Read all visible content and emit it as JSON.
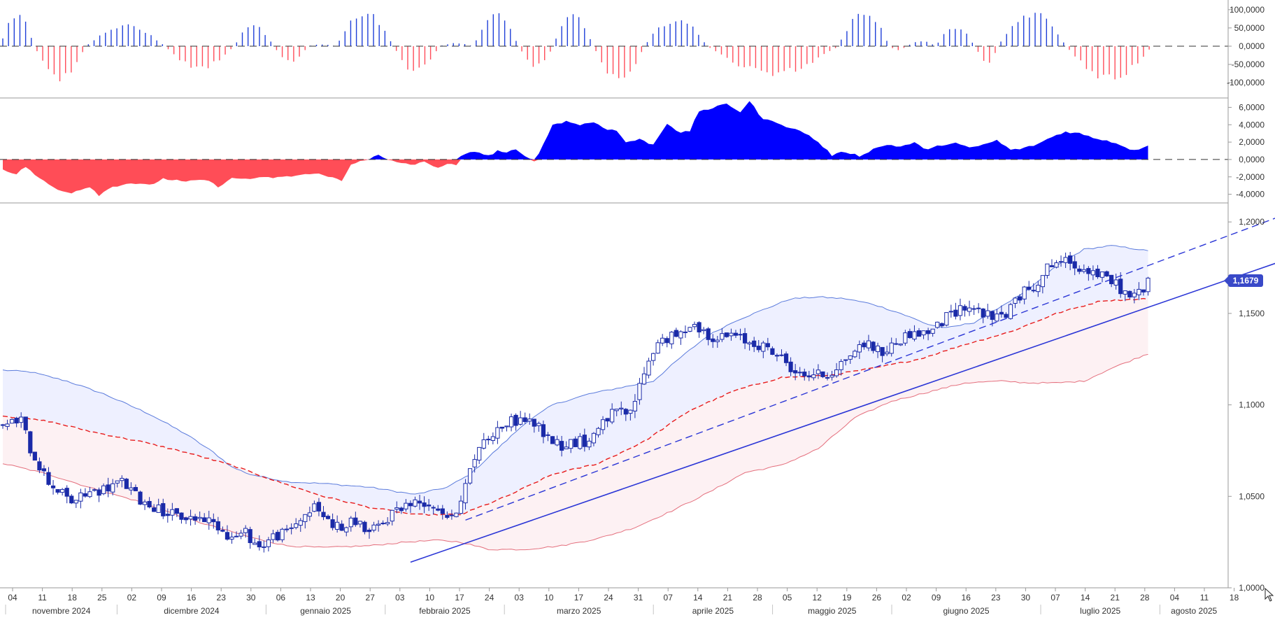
{
  "colors": {
    "up_hist": "#1f3fd8",
    "down_hist": "#ff4d5a",
    "macd_pos": "#0000ff",
    "macd_neg": "#ff4d57",
    "candle": "#1a2aa8",
    "upper_band": "#5b7bdc",
    "upper_fill": "#eef0ff",
    "lower_band": "#e46f7d",
    "lower_fill": "#fdf1f3",
    "midline": "#e81c1c",
    "trend": "#2b36d6",
    "price_tag_bg": "#3949c8",
    "axis_line": "#9a9a9a",
    "grid_zero": "#333333"
  },
  "chart_data": {
    "type": "candlestick",
    "instrument_note": "",
    "price_last_label": "1,1679",
    "price_last": 1.1679,
    "panels": {
      "histogram": {
        "type": "bar",
        "ylim": [
          -115000,
          115000
        ],
        "ticks": [
          "100,0000",
          "50,0000",
          "0,0000",
          "-50,0000",
          "-100,0000"
        ],
        "tick_values": [
          100000,
          50000,
          0,
          -50000,
          -100000
        ]
      },
      "oscillator": {
        "type": "area",
        "ylim": [
          -5000,
          7000
        ],
        "ticks": [
          "6,0000",
          "4,0000",
          "2,0000",
          "0,0000",
          "-2,0000",
          "-4,0000"
        ],
        "tick_values": [
          6000,
          4000,
          2000,
          0,
          -2000,
          -4000
        ]
      },
      "price": {
        "type": "candlestick",
        "ylim": [
          1.0,
          1.21
        ],
        "ticks": [
          "1,2000",
          "1,1500",
          "1,1000",
          "1,0500",
          "1,0000"
        ],
        "tick_values": [
          1.2,
          1.15,
          1.1,
          1.05,
          1.0
        ]
      }
    },
    "x_axis": {
      "day_ticks": [
        "04",
        "11",
        "18",
        "25",
        "02",
        "09",
        "16",
        "23",
        "30",
        "06",
        "13",
        "20",
        "27",
        "03",
        "10",
        "17",
        "24",
        "03",
        "10",
        "17",
        "24",
        "31",
        "07",
        "14",
        "21",
        "28",
        "05",
        "12",
        "19",
        "26",
        "02",
        "09",
        "16",
        "23",
        "30",
        "07",
        "14",
        "21",
        "28",
        "04",
        "11",
        "18"
      ],
      "months": [
        "novembre 2024",
        "dicembre 2024",
        "gennaio 2025",
        "febbraio 2025",
        "marzo 2025",
        "aprile 2025",
        "maggio 2025",
        "giugno 2025",
        "luglio 2025",
        "agosto 2025"
      ]
    },
    "close_anchors": [
      [
        0,
        1.088
      ],
      [
        4,
        1.092
      ],
      [
        6,
        1.076
      ],
      [
        10,
        1.058
      ],
      [
        15,
        1.047
      ],
      [
        19,
        1.052
      ],
      [
        22,
        1.054
      ],
      [
        26,
        1.058
      ],
      [
        30,
        1.048
      ],
      [
        34,
        1.043
      ],
      [
        38,
        1.039
      ],
      [
        42,
        1.038
      ],
      [
        44,
        1.038
      ],
      [
        47,
        1.034
      ],
      [
        50,
        1.027
      ],
      [
        53,
        1.03
      ],
      [
        56,
        1.022
      ],
      [
        59,
        1.028
      ],
      [
        62,
        1.03
      ],
      [
        65,
        1.038
      ],
      [
        68,
        1.044
      ],
      [
        71,
        1.037
      ],
      [
        74,
        1.032
      ],
      [
        77,
        1.037
      ],
      [
        80,
        1.03
      ],
      [
        83,
        1.035
      ],
      [
        86,
        1.044
      ],
      [
        89,
        1.046
      ],
      [
        92,
        1.047
      ],
      [
        95,
        1.044
      ],
      [
        98,
        1.037
      ],
      [
        101,
        1.056
      ],
      [
        104,
        1.078
      ],
      [
        107,
        1.085
      ],
      [
        110,
        1.09
      ],
      [
        113,
        1.092
      ],
      [
        116,
        1.09
      ],
      [
        119,
        1.082
      ],
      [
        122,
        1.078
      ],
      [
        125,
        1.08
      ],
      [
        128,
        1.08
      ],
      [
        131,
        1.092
      ],
      [
        134,
        1.096
      ],
      [
        137,
        1.095
      ],
      [
        140,
        1.118
      ],
      [
        143,
        1.135
      ],
      [
        146,
        1.137
      ],
      [
        148,
        1.138
      ],
      [
        150,
        1.145
      ],
      [
        153,
        1.14
      ],
      [
        156,
        1.136
      ],
      [
        159,
        1.138
      ],
      [
        162,
        1.135
      ],
      [
        165,
        1.133
      ],
      [
        168,
        1.129
      ],
      [
        171,
        1.123
      ],
      [
        174,
        1.116
      ],
      [
        177,
        1.117
      ],
      [
        180,
        1.116
      ],
      [
        183,
        1.123
      ],
      [
        186,
        1.13
      ],
      [
        189,
        1.134
      ],
      [
        192,
        1.128
      ],
      [
        195,
        1.134
      ],
      [
        198,
        1.139
      ],
      [
        201,
        1.139
      ],
      [
        204,
        1.143
      ],
      [
        207,
        1.15
      ],
      [
        210,
        1.154
      ],
      [
        213,
        1.152
      ],
      [
        216,
        1.147
      ],
      [
        219,
        1.15
      ],
      [
        222,
        1.16
      ],
      [
        225,
        1.165
      ],
      [
        228,
        1.175
      ],
      [
        231,
        1.179
      ],
      [
        234,
        1.176
      ],
      [
        237,
        1.174
      ],
      [
        240,
        1.17
      ],
      [
        243,
        1.166
      ],
      [
        246,
        1.159
      ],
      [
        248,
        1.161
      ],
      [
        250,
        1.168
      ]
    ],
    "upper_band_anchors": [
      [
        0,
        1.119
      ],
      [
        6,
        1.118
      ],
      [
        14,
        1.113
      ],
      [
        22,
        1.106
      ],
      [
        32,
        1.095
      ],
      [
        40,
        1.084
      ],
      [
        46,
        1.074
      ],
      [
        50,
        1.066
      ],
      [
        54,
        1.062
      ],
      [
        62,
        1.058
      ],
      [
        70,
        1.057
      ],
      [
        80,
        1.055
      ],
      [
        90,
        1.051
      ],
      [
        97,
        1.055
      ],
      [
        102,
        1.062
      ],
      [
        108,
        1.076
      ],
      [
        114,
        1.09
      ],
      [
        120,
        1.1
      ],
      [
        128,
        1.106
      ],
      [
        136,
        1.11
      ],
      [
        142,
        1.113
      ],
      [
        148,
        1.126
      ],
      [
        154,
        1.138
      ],
      [
        160,
        1.146
      ],
      [
        166,
        1.152
      ],
      [
        172,
        1.158
      ],
      [
        178,
        1.159
      ],
      [
        184,
        1.158
      ],
      [
        190,
        1.155
      ],
      [
        196,
        1.15
      ],
      [
        202,
        1.144
      ],
      [
        206,
        1.142
      ],
      [
        212,
        1.145
      ],
      [
        218,
        1.154
      ],
      [
        224,
        1.163
      ],
      [
        230,
        1.176
      ],
      [
        236,
        1.185
      ],
      [
        242,
        1.187
      ],
      [
        248,
        1.185
      ],
      [
        250,
        1.184
      ]
    ],
    "midline_anchors": [
      [
        0,
        1.094
      ],
      [
        10,
        1.091
      ],
      [
        20,
        1.085
      ],
      [
        30,
        1.08
      ],
      [
        40,
        1.074
      ],
      [
        50,
        1.067
      ],
      [
        60,
        1.058
      ],
      [
        70,
        1.05
      ],
      [
        80,
        1.044
      ],
      [
        90,
        1.04
      ],
      [
        100,
        1.04
      ],
      [
        110,
        1.05
      ],
      [
        120,
        1.062
      ],
      [
        130,
        1.068
      ],
      [
        140,
        1.08
      ],
      [
        150,
        1.097
      ],
      [
        160,
        1.108
      ],
      [
        170,
        1.115
      ],
      [
        180,
        1.116
      ],
      [
        190,
        1.12
      ],
      [
        200,
        1.125
      ],
      [
        210,
        1.133
      ],
      [
        220,
        1.14
      ],
      [
        230,
        1.15
      ],
      [
        240,
        1.157
      ],
      [
        250,
        1.158
      ]
    ],
    "lower_band_anchors": [
      [
        0,
        1.068
      ],
      [
        10,
        1.062
      ],
      [
        20,
        1.054
      ],
      [
        30,
        1.047
      ],
      [
        40,
        1.038
      ],
      [
        48,
        1.032
      ],
      [
        55,
        1.027
      ],
      [
        62,
        1.023
      ],
      [
        70,
        1.022
      ],
      [
        80,
        1.023
      ],
      [
        88,
        1.025
      ],
      [
        95,
        1.026
      ],
      [
        100,
        1.025
      ],
      [
        106,
        1.021
      ],
      [
        114,
        1.021
      ],
      [
        122,
        1.023
      ],
      [
        130,
        1.027
      ],
      [
        138,
        1.033
      ],
      [
        146,
        1.042
      ],
      [
        154,
        1.052
      ],
      [
        162,
        1.063
      ],
      [
        170,
        1.067
      ],
      [
        178,
        1.076
      ],
      [
        186,
        1.093
      ],
      [
        194,
        1.102
      ],
      [
        202,
        1.107
      ],
      [
        210,
        1.112
      ],
      [
        218,
        1.113
      ],
      [
        224,
        1.112
      ],
      [
        230,
        1.112
      ],
      [
        236,
        1.113
      ],
      [
        242,
        1.12
      ],
      [
        250,
        1.128
      ]
    ],
    "trendlines": {
      "support": {
        "points": [
          [
            89,
            1.014
          ],
          [
            282,
            1.181
          ]
        ],
        "style": "solid"
      },
      "channel": {
        "points": [
          [
            101,
            1.037
          ],
          [
            282,
            1.206
          ]
        ],
        "style": "dashed"
      }
    },
    "histogram_values": [],
    "oscillator_anchors": [
      [
        0,
        -1100
      ],
      [
        3,
        -1700
      ],
      [
        5,
        -800
      ],
      [
        8,
        -2200
      ],
      [
        12,
        -3500
      ],
      [
        15,
        -3800
      ],
      [
        19,
        -3100
      ],
      [
        21,
        -4100
      ],
      [
        24,
        -3100
      ],
      [
        28,
        -2700
      ],
      [
        32,
        -3000
      ],
      [
        35,
        -2200
      ],
      [
        40,
        -2600
      ],
      [
        44,
        -2300
      ],
      [
        47,
        -3100
      ],
      [
        50,
        -2200
      ],
      [
        54,
        -2200
      ],
      [
        58,
        -2100
      ],
      [
        62,
        -2000
      ],
      [
        66,
        -1700
      ],
      [
        70,
        -1700
      ],
      [
        74,
        -2500
      ],
      [
        76,
        -600
      ],
      [
        78,
        -100
      ],
      [
        80,
        50
      ],
      [
        82,
        500
      ],
      [
        84,
        -100
      ],
      [
        87,
        -400
      ],
      [
        90,
        -600
      ],
      [
        92,
        -300
      ],
      [
        95,
        -900
      ],
      [
        97,
        -600
      ],
      [
        99,
        -600
      ],
      [
        100,
        300
      ],
      [
        103,
        1000
      ],
      [
        106,
        400
      ],
      [
        108,
        1000
      ],
      [
        110,
        800
      ],
      [
        112,
        1100
      ],
      [
        114,
        300
      ],
      [
        116,
        -100
      ],
      [
        118,
        1700
      ],
      [
        120,
        4000
      ],
      [
        123,
        4400
      ],
      [
        126,
        4000
      ],
      [
        129,
        4300
      ],
      [
        132,
        3500
      ],
      [
        134,
        3300
      ],
      [
        136,
        2000
      ],
      [
        139,
        2300
      ],
      [
        142,
        1700
      ],
      [
        145,
        4200
      ],
      [
        148,
        3000
      ],
      [
        150,
        3300
      ],
      [
        152,
        5600
      ],
      [
        155,
        5900
      ],
      [
        158,
        6400
      ],
      [
        161,
        5500
      ],
      [
        163,
        6700
      ],
      [
        166,
        4600
      ],
      [
        169,
        4300
      ],
      [
        172,
        3600
      ],
      [
        175,
        3100
      ],
      [
        178,
        2000
      ],
      [
        181,
        500
      ],
      [
        184,
        900
      ],
      [
        187,
        400
      ],
      [
        190,
        1200
      ],
      [
        193,
        1700
      ],
      [
        196,
        1500
      ],
      [
        199,
        1900
      ],
      [
        202,
        1100
      ],
      [
        205,
        1700
      ],
      [
        208,
        1900
      ],
      [
        211,
        1300
      ],
      [
        214,
        1700
      ],
      [
        217,
        2200
      ],
      [
        220,
        1100
      ],
      [
        223,
        1300
      ],
      [
        226,
        1800
      ],
      [
        229,
        2600
      ],
      [
        232,
        3200
      ],
      [
        235,
        3000
      ],
      [
        238,
        2500
      ],
      [
        241,
        2200
      ],
      [
        244,
        1700
      ],
      [
        247,
        1000
      ],
      [
        250,
        1700
      ]
    ]
  }
}
